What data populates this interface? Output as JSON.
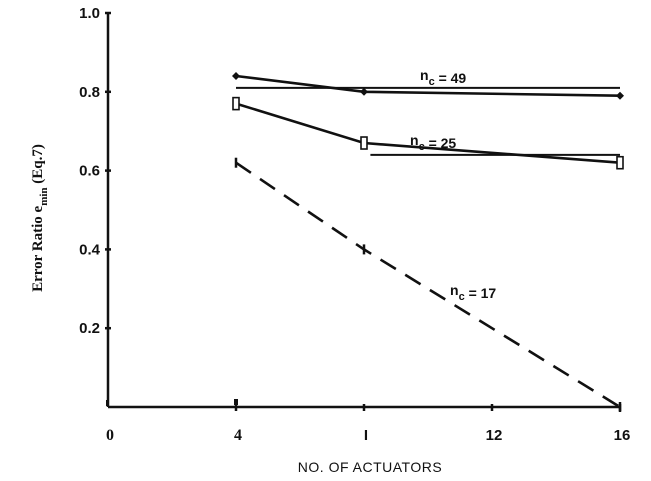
{
  "chart_data": {
    "type": "line",
    "xlabel": "NO. OF ACTUATORS",
    "ylabel": "Error Ratio e_min (Eq.7)",
    "xlim": [
      0,
      16
    ],
    "ylim": [
      0,
      1.0
    ],
    "x_ticks": [
      {
        "value": 0,
        "label": "0"
      },
      {
        "value": 4,
        "label": "4"
      },
      {
        "value": 8,
        "label": "I"
      },
      {
        "value": 12,
        "label": "12"
      },
      {
        "value": 16,
        "label": "16"
      }
    ],
    "y_ticks": [
      {
        "value": 0.2,
        "label": "0.2"
      },
      {
        "value": 0.4,
        "label": "0.4"
      },
      {
        "value": 0.6,
        "label": "0.6"
      },
      {
        "value": 0.8,
        "label": "0.8"
      },
      {
        "value": 1.0,
        "label": "1.0"
      }
    ],
    "series": [
      {
        "name": "n_c = 49",
        "x": [
          4,
          8,
          16
        ],
        "values": [
          0.84,
          0.8,
          0.79
        ],
        "style": "solid",
        "marker": "diamond"
      },
      {
        "name": "n_c = 25",
        "x": [
          4,
          8,
          16
        ],
        "values": [
          0.77,
          0.67,
          0.62
        ],
        "style": "solid",
        "marker": "square"
      },
      {
        "name": "n_c = 17",
        "x": [
          4,
          8,
          16
        ],
        "values": [
          0.62,
          0.4,
          0.0
        ],
        "style": "dashed",
        "marker": "tick"
      }
    ],
    "reference_lines": [
      {
        "y": 0.81,
        "x_range": [
          4,
          16
        ]
      },
      {
        "y": 0.64,
        "x_range": [
          8.2,
          16
        ]
      }
    ],
    "annotations": [
      {
        "base": "n",
        "sub": "c",
        "tail": " = 49",
        "series": 0
      },
      {
        "base": "n",
        "sub": "c",
        "tail": " = 25",
        "series": 1
      },
      {
        "base": "n",
        "sub": "c",
        "tail": " = 17",
        "series": 2
      }
    ],
    "ylabel_parts": {
      "main": "Error Ratio e",
      "sub": "min",
      "tail": " (Eq.7)"
    },
    "colors": {
      "ink": "#111111",
      "background": "#ffffff"
    }
  }
}
